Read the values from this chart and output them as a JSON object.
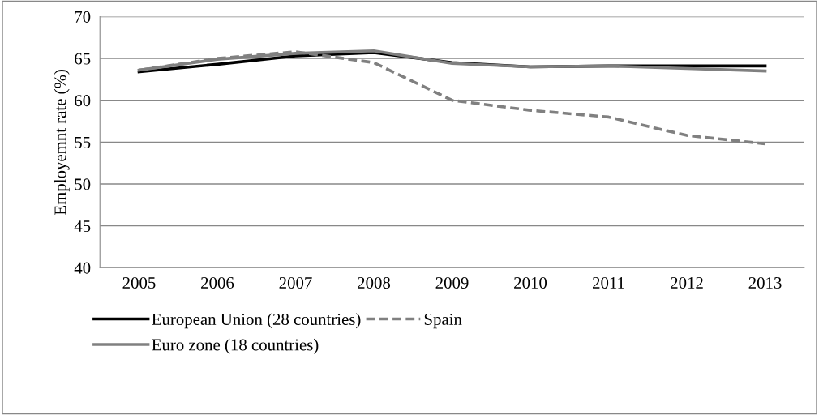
{
  "chart_data": {
    "type": "line",
    "ylabel": "Employemnt rate (%)",
    "categories": [
      "2005",
      "2006",
      "2007",
      "2008",
      "2009",
      "2010",
      "2011",
      "2012",
      "2013"
    ],
    "series": [
      {
        "name": "European Union (28 countries)",
        "color": "#000000",
        "values": [
          63.4,
          64.3,
          65.3,
          65.7,
          64.5,
          64.0,
          64.1,
          64.1,
          64.1
        ]
      },
      {
        "name": "Euro zone (18 countries)",
        "color": "#808080",
        "values": [
          63.6,
          64.9,
          65.6,
          65.9,
          64.4,
          64.0,
          64.1,
          63.8,
          63.5
        ]
      },
      {
        "name": "Spain",
        "color": "#808080",
        "line_style": "dashed",
        "values": [
          63.6,
          65.0,
          65.8,
          64.5,
          60.0,
          58.8,
          58.0,
          55.8,
          54.8
        ]
      }
    ],
    "ylim": [
      40,
      70
    ],
    "yticks": [
      40,
      45,
      50,
      55,
      60,
      65,
      70
    ],
    "grid": "y",
    "legend": "bottom"
  }
}
